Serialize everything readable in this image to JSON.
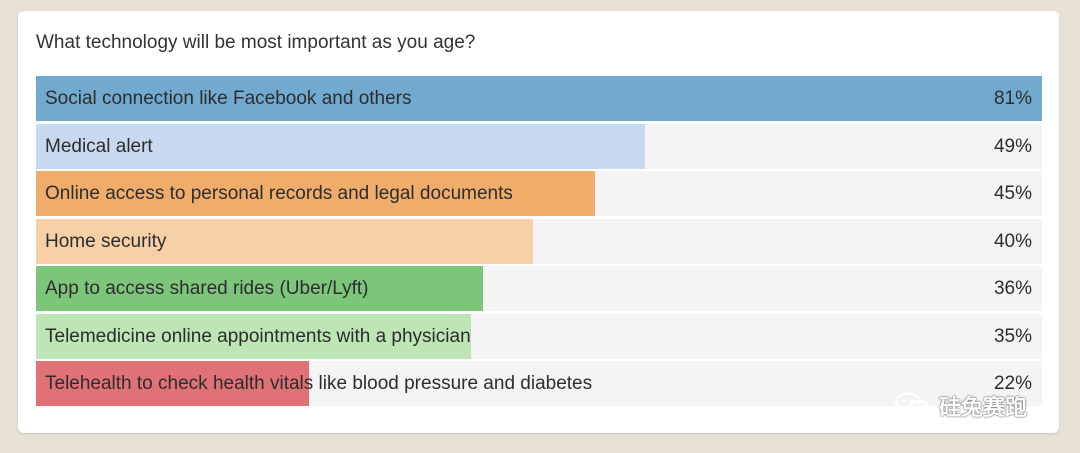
{
  "question": "What technology will be most important as you age?",
  "watermark": {
    "icon": "wechat-icon",
    "text": "硅兔赛跑"
  },
  "chart_data": {
    "type": "bar",
    "orientation": "horizontal",
    "title": "What technology will be most important as you age?",
    "ylim": [
      0,
      81
    ],
    "categories": [
      "Social connection like Facebook and others",
      "Medical alert",
      "Online access to personal records and legal documents",
      "Home security",
      "App to access shared rides (Uber/Lyft)",
      "Telemedicine online appointments with a physician",
      "Telehealth to check health vitals like blood pressure and diabetes"
    ],
    "values": [
      81,
      49,
      45,
      40,
      36,
      35,
      22
    ],
    "value_labels": [
      "81%",
      "49%",
      "45%",
      "40%",
      "36%",
      "35%",
      "22%"
    ],
    "colors": [
      "#72a9cf",
      "#c8d9ef",
      "#f0ac6b",
      "#f6d0a6",
      "#7cc57a",
      "#bde5b5",
      "#e07177"
    ],
    "track_color": "#f4f4f4",
    "grid": false,
    "legend": "none"
  }
}
